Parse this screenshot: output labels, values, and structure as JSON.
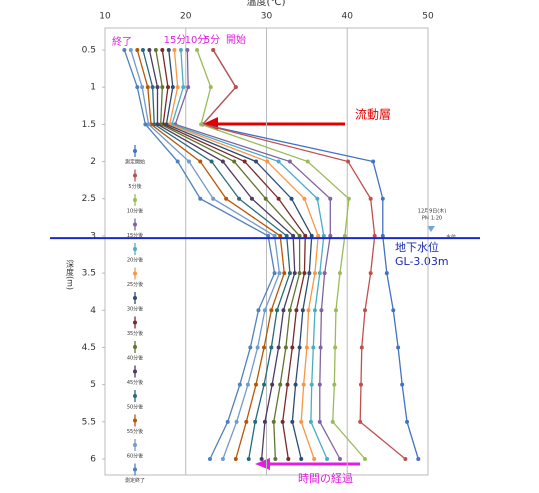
{
  "chart_data": {
    "type": "line",
    "title": "温度(℃)",
    "y_label": "深度(m)",
    "depths": [
      0.5,
      1,
      1.5,
      2,
      2.5,
      3,
      3.5,
      4,
      4.5,
      5,
      5.5,
      6
    ],
    "xlim": [
      10,
      50
    ],
    "xticks": [
      10,
      20,
      30,
      40,
      50
    ],
    "ylim": [
      0.5,
      6
    ],
    "yticks": [
      0.5,
      1,
      1.5,
      2,
      2.5,
      3,
      3.5,
      4,
      4.5,
      5,
      5.5,
      6
    ],
    "grid": true,
    "water_level": 3.03,
    "series": [
      {
        "name": "測定開始",
        "color": "#4472c4",
        "values": [
          23.4,
          26.2,
          22.1,
          43.2,
          44.4,
          44.4,
          44.9,
          45.7,
          46.3,
          46.8,
          47.4,
          48.8
        ]
      },
      {
        "name": "5分後",
        "color": "#c0504d",
        "values": [
          23.4,
          26.2,
          22.1,
          40.1,
          42.9,
          43.4,
          42.9,
          42.2,
          41.8,
          41.7,
          41.6,
          47.2
        ]
      },
      {
        "name": "10分後",
        "color": "#9bbb59",
        "values": [
          21.4,
          23.1,
          21.9,
          35.1,
          40.2,
          39.7,
          39.1,
          38.6,
          38.5,
          38.4,
          38.2,
          42.2
        ]
      },
      {
        "name": "15分後",
        "color": "#8064a2",
        "values": [
          20.2,
          20.3,
          18.7,
          32.9,
          37.9,
          37.9,
          37.2,
          36.8,
          36.7,
          36.6,
          36.6,
          39.1
        ]
      },
      {
        "name": "20分後",
        "color": "#4bacc6",
        "values": [
          19.4,
          19.7,
          18.3,
          31.5,
          36.3,
          37.1,
          36.6,
          36.0,
          35.8,
          35.6,
          35.5,
          37.5
        ]
      },
      {
        "name": "25分後",
        "color": "#f79646",
        "values": [
          18.6,
          19.0,
          18.0,
          30.1,
          34.7,
          36.4,
          36.0,
          35.2,
          35.0,
          34.6,
          34.3,
          35.9
        ]
      },
      {
        "name": "30分後",
        "color": "#2c4d75",
        "values": [
          17.9,
          18.4,
          17.6,
          28.7,
          33.1,
          35.6,
          35.3,
          34.5,
          34.1,
          33.6,
          33.2,
          34.3
        ]
      },
      {
        "name": "35分後",
        "color": "#772c2a",
        "values": [
          17.1,
          17.8,
          17.2,
          27.3,
          31.5,
          34.8,
          34.7,
          33.7,
          33.2,
          32.6,
          32.0,
          32.7
        ]
      },
      {
        "name": "40分後",
        "color": "#5f7530",
        "values": [
          16.3,
          17.1,
          16.9,
          26.0,
          29.9,
          34.1,
          34.1,
          32.9,
          32.4,
          31.7,
          30.9,
          31.1
        ]
      },
      {
        "name": "45分後",
        "color": "#4d3b62",
        "values": [
          15.5,
          16.5,
          16.5,
          24.6,
          28.2,
          33.3,
          33.5,
          32.1,
          31.5,
          30.7,
          29.8,
          29.4
        ]
      },
      {
        "name": "50分後",
        "color": "#276a7c",
        "values": [
          14.7,
          15.9,
          16.1,
          23.2,
          26.6,
          32.5,
          32.9,
          31.3,
          30.6,
          29.7,
          28.6,
          27.8
        ]
      },
      {
        "name": "55分後",
        "color": "#b65708",
        "values": [
          14.0,
          15.3,
          15.7,
          21.8,
          25.0,
          31.7,
          32.2,
          30.6,
          29.7,
          28.7,
          27.5,
          26.2
        ]
      },
      {
        "name": "60分後",
        "color": "#729aca",
        "values": [
          13.2,
          14.6,
          15.4,
          20.4,
          23.4,
          31.0,
          31.6,
          29.8,
          28.9,
          27.7,
          26.3,
          24.6
        ]
      },
      {
        "name": "測定終了",
        "color": "#4f81bd",
        "values": [
          12.4,
          14.0,
          15.0,
          19.0,
          21.8,
          30.2,
          31.0,
          29.0,
          28.0,
          26.7,
          25.2,
          23.0
        ]
      }
    ],
    "annotations": {
      "end": "終了",
      "min15": "15分",
      "min10": "10分",
      "min5": "5分",
      "start": "開始",
      "flow_layer": "流動層",
      "groundwater": "地下水位",
      "groundwater_depth": "GL-3.03m",
      "time_passing": "時間の経過",
      "date": "12月9日(木)",
      "time": "PM 1:20",
      "water_mark": "水位"
    }
  }
}
